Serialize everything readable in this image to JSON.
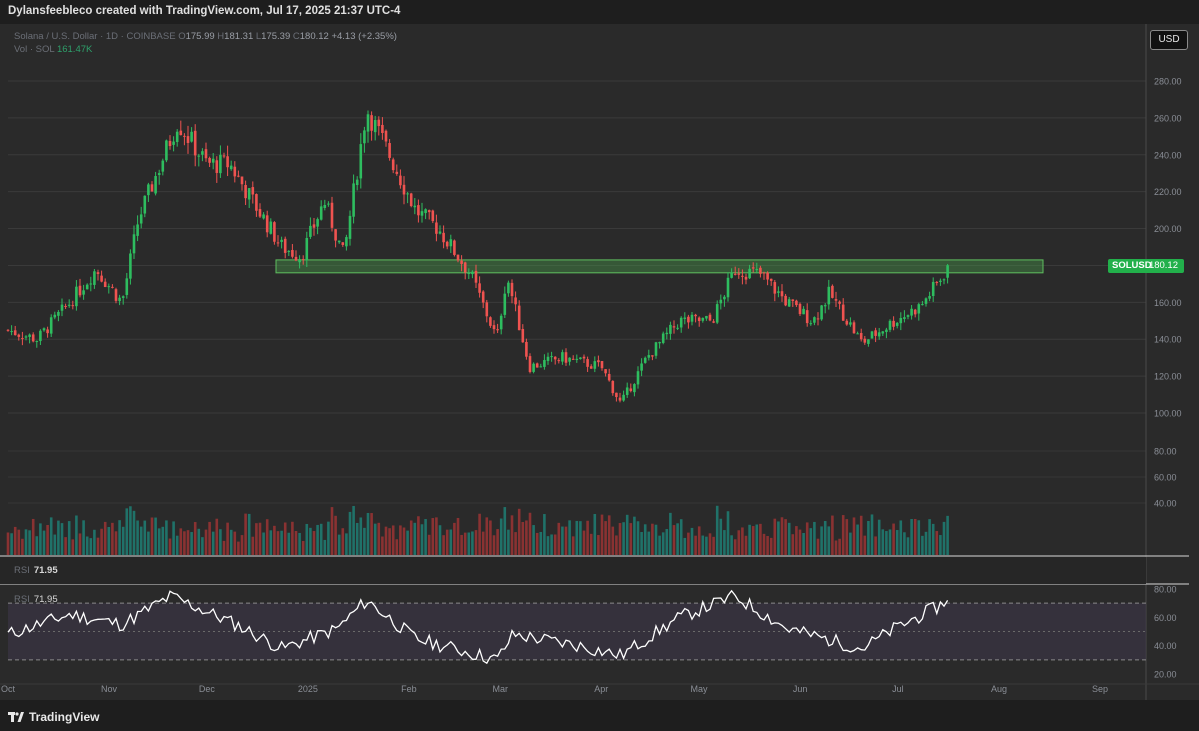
{
  "header": {
    "attribution": "Dylansfeebleco created with TradingView.com, Jul 17, 2025 21:37 UTC-4"
  },
  "legend": {
    "symbol": "Solana / U.S. Dollar · 1D · COINBASE",
    "o_label": "O",
    "o": "175.99",
    "h_label": "H",
    "h": "181.31",
    "l_label": "L",
    "l": "175.39",
    "c_label": "C",
    "c": "180.12",
    "change": "+4.13 (+2.35%)",
    "vol_label": "Vol · SOL",
    "vol": "161.47K"
  },
  "toolbar": {
    "currency_label": "USD"
  },
  "price_tag": {
    "symbol": "SOLUSD",
    "price": "180.12"
  },
  "rsi": {
    "label": "RSI",
    "value": "71.95"
  },
  "footer": {
    "brand": "TradingView"
  },
  "colors": {
    "up": "#26a69a",
    "up_candle": "#2ebd5f",
    "down": "#ef5350",
    "bg": "#2a2a2a",
    "zone": "#4caf50",
    "rsi_line": "#ffffff",
    "rsi_band": "#3a3545"
  },
  "chart_data": {
    "type": "candlestick",
    "timeframe": "1D",
    "symbol": "SOLUSD",
    "price_axis": {
      "ylim": [
        90,
        300
      ],
      "ticks": [
        100,
        120,
        140,
        160,
        180,
        200,
        220,
        240,
        260,
        280
      ]
    },
    "volume_axis": {
      "ticks": [
        40,
        60,
        80
      ]
    },
    "rsi_axis": {
      "ylim": [
        20,
        80
      ],
      "ticks": [
        20,
        40,
        60,
        80
      ],
      "bands": [
        30,
        70
      ]
    },
    "x_ticks": [
      "Oct",
      "Nov",
      "Dec",
      "2025",
      "Feb",
      "Mar",
      "Apr",
      "May",
      "Jun",
      "Jul",
      "Aug",
      "Sep"
    ],
    "resistance_zone": {
      "from": 176,
      "to": 183
    },
    "close_series": [
      {
        "date": "Oct 1",
        "close": 145
      },
      {
        "date": "Oct 10",
        "close": 140
      },
      {
        "date": "Oct 20",
        "close": 160
      },
      {
        "date": "Oct 28",
        "close": 178
      },
      {
        "date": "Nov 5",
        "close": 160
      },
      {
        "date": "Nov 10",
        "close": 205
      },
      {
        "date": "Nov 22",
        "close": 258
      },
      {
        "date": "Dec 1",
        "close": 235
      },
      {
        "date": "Dec 8",
        "close": 235
      },
      {
        "date": "Dec 15",
        "close": 215
      },
      {
        "date": "Dec 24",
        "close": 190
      },
      {
        "date": "Dec 30",
        "close": 185
      },
      {
        "date": "Jan 6",
        "close": 215
      },
      {
        "date": "Jan 12",
        "close": 185
      },
      {
        "date": "Jan 19",
        "close": 265
      },
      {
        "date": "Jan 26",
        "close": 240
      },
      {
        "date": "Feb 3",
        "close": 210
      },
      {
        "date": "Feb 10",
        "close": 200
      },
      {
        "date": "Feb 20",
        "close": 175
      },
      {
        "date": "Feb 28",
        "close": 140
      },
      {
        "date": "Mar 3",
        "close": 175
      },
      {
        "date": "Mar 10",
        "close": 125
      },
      {
        "date": "Mar 20",
        "close": 130
      },
      {
        "date": "Apr 1",
        "close": 125
      },
      {
        "date": "Apr 7",
        "close": 105
      },
      {
        "date": "Apr 15",
        "close": 130
      },
      {
        "date": "Apr 25",
        "close": 150
      },
      {
        "date": "May 5",
        "close": 150
      },
      {
        "date": "May 12",
        "close": 178
      },
      {
        "date": "May 20",
        "close": 175
      },
      {
        "date": "May 28",
        "close": 160
      },
      {
        "date": "Jun 5",
        "close": 150
      },
      {
        "date": "Jun 10",
        "close": 165
      },
      {
        "date": "Jun 20",
        "close": 138
      },
      {
        "date": "Jun 30",
        "close": 150
      },
      {
        "date": "Jul 8",
        "close": 158
      },
      {
        "date": "Jul 17",
        "close": 180.12
      }
    ],
    "rsi_series": [
      {
        "date": "Oct 1",
        "value": 48
      },
      {
        "date": "Oct 20",
        "value": 62
      },
      {
        "date": "Nov 5",
        "value": 55
      },
      {
        "date": "Nov 20",
        "value": 75
      },
      {
        "date": "Dec 10",
        "value": 55
      },
      {
        "date": "Dec 24",
        "value": 38
      },
      {
        "date": "Jan 10",
        "value": 52
      },
      {
        "date": "Jan 19",
        "value": 72
      },
      {
        "date": "Feb 3",
        "value": 45
      },
      {
        "date": "Feb 28",
        "value": 30
      },
      {
        "date": "Mar 5",
        "value": 48
      },
      {
        "date": "Mar 25",
        "value": 40
      },
      {
        "date": "Apr 7",
        "value": 33
      },
      {
        "date": "Apr 25",
        "value": 60
      },
      {
        "date": "May 12",
        "value": 75
      },
      {
        "date": "May 28",
        "value": 52
      },
      {
        "date": "Jun 20",
        "value": 38
      },
      {
        "date": "Jun 30",
        "value": 52
      },
      {
        "date": "Jul 17",
        "value": 71.95
      }
    ]
  }
}
